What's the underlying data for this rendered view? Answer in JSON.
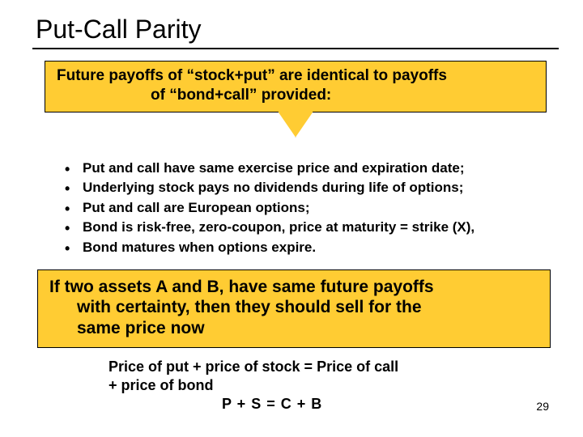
{
  "title": "Put-Call Parity",
  "banner": {
    "line1": "Future payoffs of “stock+put” are identical to payoffs",
    "line2": "of “bond+call” provided:",
    "bg_color": "#ffcc33",
    "border_color": "#000000",
    "font_size_pt": 19
  },
  "bullets": {
    "items": [
      "Put and call have same exercise price and expiration date;",
      "Underlying stock pays no dividends during life of options;",
      "Put and call are European options;",
      "Bond is risk-free, zero-coupon, price at maturity = strike (X),",
      "Bond matures when options expire."
    ],
    "font_size_pt": 17
  },
  "callout": {
    "line1": "If two assets A and B, have same future payoffs",
    "line2": "with certainty, then they should sell for the",
    "line3": "same price now",
    "bg_color": "#ffcc33",
    "border_color": "#000000",
    "font_size_pt": 21
  },
  "equation": {
    "line1": "Price of put + price of stock = Price of call",
    "line2": "+ price of bond",
    "line3": "P + S = C + B",
    "font_size_pt": 18
  },
  "page_number": "29",
  "colors": {
    "background": "#ffffff",
    "text": "#000000",
    "accent": "#ffcc33",
    "rule": "#000000"
  }
}
